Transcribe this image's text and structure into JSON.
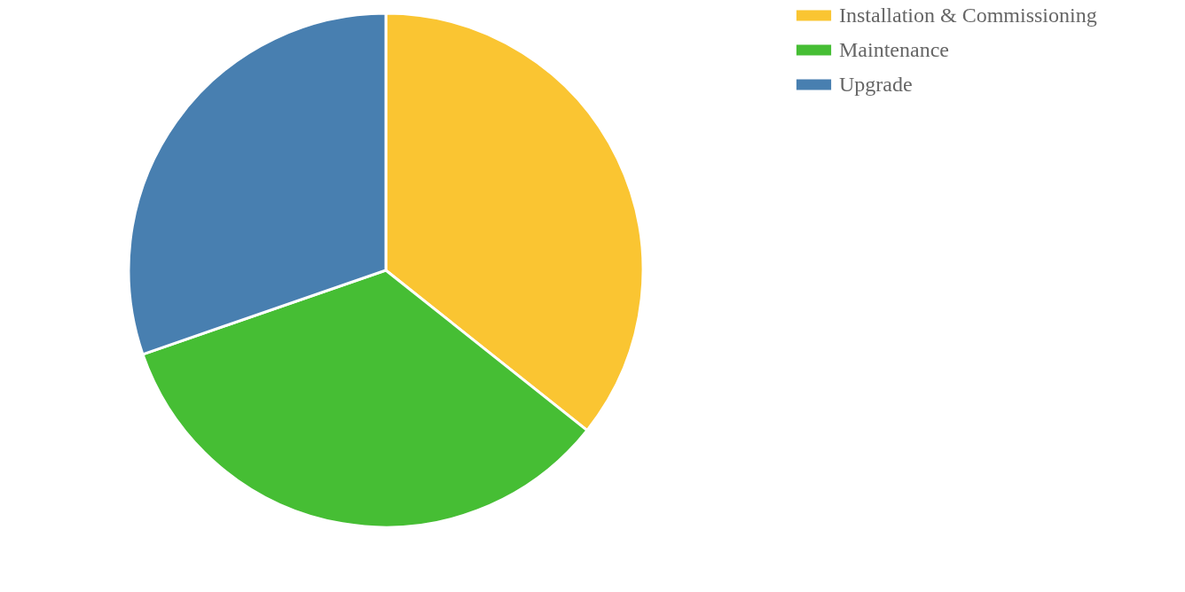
{
  "chart_data": {
    "type": "pie",
    "categories": [
      "Installation & Commissioning",
      "Maintenance",
      "Upgrade"
    ],
    "values": [
      35.7,
      34.0,
      30.3
    ],
    "colors": [
      "#fac532",
      "#46be34",
      "#487fb0"
    ],
    "legend": "right"
  }
}
